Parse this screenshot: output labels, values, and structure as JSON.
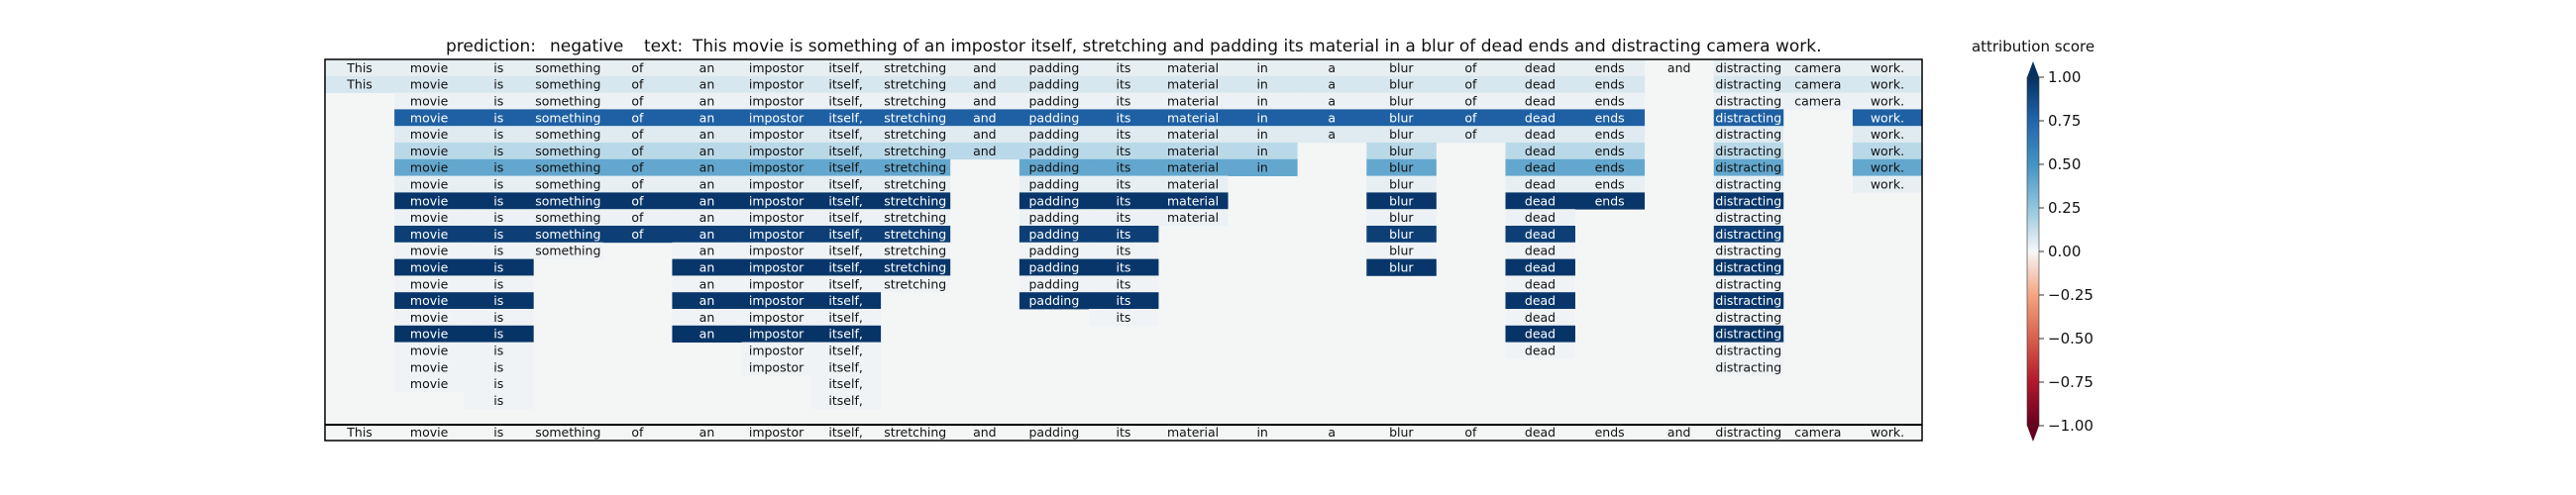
{
  "chart_data": {
    "type": "heatmap",
    "title": {
      "prediction_label": "prediction:",
      "prediction_value": "negative",
      "text_label": "text:",
      "text_value": "This movie is something of an impostor itself, stretching and padding its material in a blur of dead ends and distracting camera work."
    },
    "tokens": [
      "This",
      "movie",
      "is",
      "something",
      "of",
      "an",
      "impostor",
      "itself,",
      "stretching",
      "and",
      "padding",
      "its",
      "material",
      "in",
      "a",
      "blur",
      "of",
      "dead",
      "ends",
      "and",
      "distracting",
      "camera",
      "work."
    ],
    "rows": [
      {
        "present": [
          1,
          1,
          1,
          1,
          1,
          1,
          1,
          1,
          1,
          1,
          1,
          1,
          1,
          1,
          1,
          1,
          1,
          1,
          1,
          1,
          1,
          1,
          1
        ],
        "colored": [
          0,
          1,
          2,
          3,
          4,
          5,
          6,
          7,
          8,
          9,
          10,
          11,
          12,
          13,
          14,
          15,
          16,
          17,
          18,
          20,
          21,
          22
        ],
        "score": 0.04
      },
      {
        "present": [
          1,
          1,
          1,
          1,
          1,
          1,
          1,
          1,
          1,
          1,
          1,
          1,
          1,
          1,
          1,
          1,
          1,
          1,
          1,
          0,
          1,
          1,
          1
        ],
        "colored": [
          0,
          1,
          2,
          3,
          4,
          5,
          6,
          7,
          8,
          9,
          10,
          11,
          12,
          13,
          14,
          15,
          16,
          17,
          18,
          20,
          21,
          22
        ],
        "score": 0.08
      },
      {
        "present": [
          0,
          1,
          1,
          1,
          1,
          1,
          1,
          1,
          1,
          1,
          1,
          1,
          1,
          1,
          1,
          1,
          1,
          1,
          1,
          0,
          1,
          1,
          1
        ],
        "colored": [
          1,
          2,
          3,
          4,
          5,
          6,
          7,
          8,
          9,
          10,
          11,
          12,
          13,
          14,
          15,
          16,
          17,
          18,
          20,
          21,
          22
        ],
        "score": 0.03
      },
      {
        "present": [
          0,
          1,
          1,
          1,
          1,
          1,
          1,
          1,
          1,
          1,
          1,
          1,
          1,
          1,
          1,
          1,
          1,
          1,
          1,
          0,
          1,
          0,
          1
        ],
        "colored": [
          1,
          2,
          3,
          4,
          5,
          6,
          7,
          8,
          9,
          10,
          11,
          12,
          13,
          14,
          15,
          16,
          17,
          18,
          20,
          22
        ],
        "score": 0.78
      },
      {
        "present": [
          0,
          1,
          1,
          1,
          1,
          1,
          1,
          1,
          1,
          1,
          1,
          1,
          1,
          1,
          1,
          1,
          1,
          1,
          1,
          0,
          1,
          0,
          1
        ],
        "colored": [
          1,
          2,
          3,
          4,
          5,
          6,
          7,
          8,
          9,
          10,
          11,
          12,
          13,
          14,
          15,
          16,
          17,
          18,
          20,
          22
        ],
        "score": 0.06
      },
      {
        "present": [
          0,
          1,
          1,
          1,
          1,
          1,
          1,
          1,
          1,
          1,
          1,
          1,
          1,
          1,
          0,
          1,
          0,
          1,
          1,
          0,
          1,
          0,
          1
        ],
        "colored": [
          1,
          2,
          3,
          4,
          5,
          6,
          7,
          8,
          9,
          10,
          11,
          12,
          13,
          15,
          17,
          18,
          20,
          22
        ],
        "score": 0.15
      },
      {
        "present": [
          0,
          1,
          1,
          1,
          1,
          1,
          1,
          1,
          1,
          0,
          1,
          1,
          1,
          1,
          0,
          1,
          0,
          1,
          1,
          0,
          1,
          0,
          1
        ],
        "colored": [
          1,
          2,
          3,
          4,
          5,
          6,
          7,
          8,
          10,
          11,
          12,
          13,
          15,
          17,
          18,
          20,
          22
        ],
        "score": 0.4
      },
      {
        "present": [
          0,
          1,
          1,
          1,
          1,
          1,
          1,
          1,
          1,
          0,
          1,
          1,
          1,
          0,
          0,
          1,
          0,
          1,
          1,
          0,
          1,
          0,
          1
        ],
        "colored": [
          1,
          2,
          3,
          4,
          5,
          6,
          7,
          8,
          10,
          11,
          12,
          15,
          17,
          18,
          20,
          22
        ],
        "score": 0.04
      },
      {
        "present": [
          0,
          1,
          1,
          1,
          1,
          1,
          1,
          1,
          1,
          0,
          1,
          1,
          1,
          0,
          0,
          1,
          0,
          1,
          1,
          0,
          1,
          0,
          0
        ],
        "colored": [
          1,
          2,
          3,
          4,
          5,
          6,
          7,
          8,
          10,
          11,
          12,
          15,
          17,
          18,
          20
        ],
        "score": 0.97
      },
      {
        "present": [
          0,
          1,
          1,
          1,
          1,
          1,
          1,
          1,
          1,
          0,
          1,
          1,
          1,
          0,
          0,
          1,
          0,
          1,
          0,
          0,
          1,
          0,
          0
        ],
        "colored": [
          1,
          2,
          3,
          4,
          5,
          6,
          7,
          8,
          10,
          11,
          12,
          15,
          17,
          20
        ],
        "score": 0.03
      },
      {
        "present": [
          0,
          1,
          1,
          1,
          1,
          1,
          1,
          1,
          1,
          0,
          1,
          1,
          0,
          0,
          0,
          1,
          0,
          1,
          0,
          0,
          1,
          0,
          0
        ],
        "colored": [
          1,
          2,
          3,
          4,
          5,
          6,
          7,
          8,
          10,
          11,
          15,
          17,
          20
        ],
        "score": 0.93
      },
      {
        "present": [
          0,
          1,
          1,
          1,
          0,
          1,
          1,
          1,
          1,
          0,
          1,
          1,
          0,
          0,
          0,
          1,
          0,
          1,
          0,
          0,
          1,
          0,
          0
        ],
        "colored": [
          1,
          2,
          3,
          5,
          6,
          7,
          8,
          10,
          11,
          15,
          17,
          20
        ],
        "score": 0.02
      },
      {
        "present": [
          0,
          1,
          1,
          0,
          0,
          1,
          1,
          1,
          1,
          0,
          1,
          1,
          0,
          0,
          0,
          1,
          0,
          1,
          0,
          0,
          1,
          0,
          0
        ],
        "colored": [
          1,
          2,
          5,
          6,
          7,
          8,
          10,
          11,
          15,
          17,
          20
        ],
        "score": 0.97
      },
      {
        "present": [
          0,
          1,
          1,
          0,
          0,
          1,
          1,
          1,
          1,
          0,
          1,
          1,
          0,
          0,
          0,
          0,
          0,
          1,
          0,
          0,
          1,
          0,
          0
        ],
        "colored": [
          1,
          2,
          5,
          6,
          7,
          8,
          10,
          11,
          17,
          20
        ],
        "score": 0.02
      },
      {
        "present": [
          0,
          1,
          1,
          0,
          0,
          1,
          1,
          1,
          0,
          0,
          1,
          1,
          0,
          0,
          0,
          0,
          0,
          1,
          0,
          0,
          1,
          0,
          0
        ],
        "colored": [
          1,
          2,
          5,
          6,
          7,
          10,
          11,
          17,
          20
        ],
        "score": 0.97
      },
      {
        "present": [
          0,
          1,
          1,
          0,
          0,
          1,
          1,
          1,
          0,
          0,
          0,
          1,
          0,
          0,
          0,
          0,
          0,
          1,
          0,
          0,
          1,
          0,
          0
        ],
        "colored": [
          1,
          2,
          5,
          6,
          7,
          11,
          17,
          20
        ],
        "score": 0.02
      },
      {
        "present": [
          0,
          1,
          1,
          0,
          0,
          1,
          1,
          1,
          0,
          0,
          0,
          0,
          0,
          0,
          0,
          0,
          0,
          1,
          0,
          0,
          1,
          0,
          0
        ],
        "colored": [
          1,
          2,
          5,
          6,
          7,
          17,
          20
        ],
        "score": 0.98
      },
      {
        "present": [
          0,
          1,
          1,
          0,
          0,
          0,
          1,
          1,
          0,
          0,
          0,
          0,
          0,
          0,
          0,
          0,
          0,
          1,
          0,
          0,
          1,
          0,
          0
        ],
        "colored": [
          1,
          2,
          6,
          7,
          17,
          20
        ],
        "score": 0.02
      },
      {
        "present": [
          0,
          1,
          1,
          0,
          0,
          0,
          1,
          1,
          0,
          0,
          0,
          0,
          0,
          0,
          0,
          0,
          0,
          0,
          0,
          0,
          1,
          0,
          0
        ],
        "colored": [
          1,
          2,
          6,
          7,
          20
        ],
        "score": 0.02
      },
      {
        "present": [
          0,
          1,
          1,
          0,
          0,
          0,
          0,
          1,
          0,
          0,
          0,
          0,
          0,
          0,
          0,
          0,
          0,
          0,
          0,
          0,
          0,
          0,
          0
        ],
        "colored": [
          1,
          2,
          7
        ],
        "score": 0.02
      },
      {
        "present": [
          0,
          0,
          1,
          0,
          0,
          0,
          0,
          1,
          0,
          0,
          0,
          0,
          0,
          0,
          0,
          0,
          0,
          0,
          0,
          0,
          0,
          0,
          0
        ],
        "colored": [
          2,
          7
        ],
        "score": 0.02
      }
    ],
    "colorbar": {
      "label": "attribution score",
      "min": -1.0,
      "max": 1.0,
      "ticks": [
        "1.00",
        "0.75",
        "0.50",
        "0.25",
        "0.00",
        "−0.25",
        "−0.50",
        "−0.75",
        "−1.00"
      ],
      "colormap": "RdBu",
      "stops": [
        {
          "v": -1.0,
          "c": "#67001f"
        },
        {
          "v": -0.75,
          "c": "#b2182b"
        },
        {
          "v": -0.5,
          "c": "#d6604d"
        },
        {
          "v": -0.25,
          "c": "#f4a582"
        },
        {
          "v": 0.0,
          "c": "#f7f7f7"
        },
        {
          "v": 0.25,
          "c": "#92c5de"
        },
        {
          "v": 0.5,
          "c": "#4393c3"
        },
        {
          "v": 0.75,
          "c": "#2166ac"
        },
        {
          "v": 1.0,
          "c": "#053061"
        }
      ]
    },
    "background_color": "#f4f6f6"
  }
}
